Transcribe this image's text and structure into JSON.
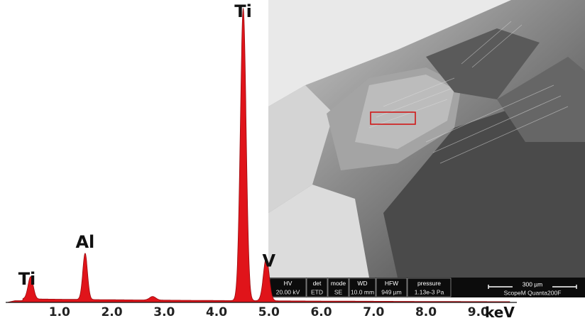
{
  "chart_data": {
    "type": "line",
    "title": "",
    "xlabel": "keV",
    "ylabel": "",
    "xlim": [
      0.0,
      9.6
    ],
    "ylim": [
      0,
      100
    ],
    "grid": false,
    "fill": true,
    "x_ticks": [
      "1.0",
      "2.0",
      "3.0",
      "4.0",
      "5.0",
      "6.0",
      "7.0",
      "8.0",
      "9.0"
    ],
    "series": [
      {
        "peaks": [
          {
            "element": "Ti",
            "energy_kev": 0.45,
            "height": 7.5,
            "width": 0.05
          },
          {
            "element": "Al",
            "energy_kev": 1.49,
            "height": 15.5,
            "width": 0.045
          },
          {
            "element": "",
            "energy_kev": 2.78,
            "height": 1.2,
            "width": 0.06
          },
          {
            "element": "Ti",
            "energy_kev": 4.51,
            "height": 98,
            "width": 0.055
          },
          {
            "element": "V",
            "energy_kev": 4.95,
            "height": 14.5,
            "width": 0.055
          }
        ],
        "background_level": 1.2,
        "color": "#e0141a"
      }
    ],
    "peak_labels": [
      {
        "text": "Ti",
        "energy_kev": 0.38
      },
      {
        "text": "Al",
        "energy_kev": 1.49
      },
      {
        "text": "Ti",
        "energy_kev": 4.51
      },
      {
        "text": "V",
        "energy_kev": 5.0
      }
    ]
  },
  "sem_image": {
    "highlight_color": "#d01818",
    "databar": {
      "headers": [
        "HV",
        "det",
        "mode",
        "WD",
        "HFW",
        "pressure"
      ],
      "values": [
        "20.00 kV",
        "ETD",
        "SE",
        "10.0 mm",
        "949 µm",
        "1.13e-3 Pa"
      ],
      "scale_label": "300 µm",
      "instrument": "ScopeM Quanta200F"
    }
  }
}
